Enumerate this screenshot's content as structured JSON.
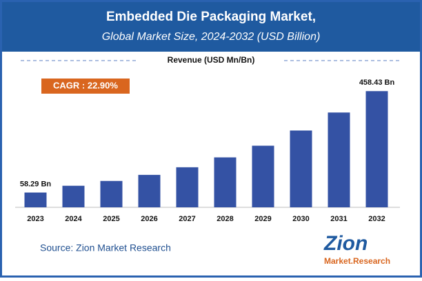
{
  "chart_data": {
    "type": "bar",
    "title": "Embedded Die Packaging Market,",
    "subtitle": "Global Market Size, 2024-2032 (USD Billion)",
    "y_label": "Revenue (USD Mn/Bn)",
    "annotation": "CAGR : 22.90%",
    "source": "Source: Zion Market Research",
    "logo": {
      "main": "Zion",
      "sub": "Market.Research"
    },
    "categories": [
      "2023",
      "2024",
      "2025",
      "2026",
      "2027",
      "2028",
      "2029",
      "2030",
      "2031",
      "2032"
    ],
    "values": [
      58.29,
      85,
      104,
      128,
      158,
      197,
      243,
      303,
      374,
      458.43
    ],
    "value_labels": [
      "58.29 Bn",
      null,
      null,
      null,
      null,
      null,
      null,
      null,
      null,
      "458.43 Bn"
    ],
    "color": "#3452a4",
    "ylim": [
      0,
      500
    ]
  }
}
